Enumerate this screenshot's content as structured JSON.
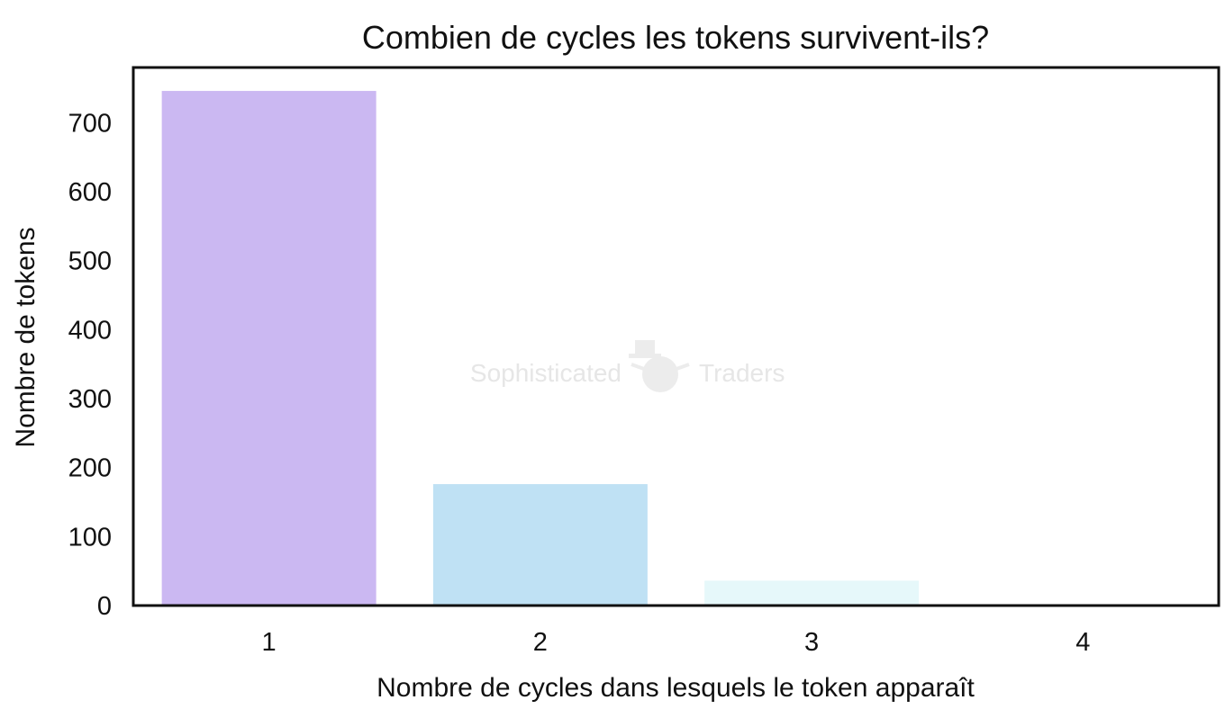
{
  "chart_data": {
    "type": "bar",
    "title": "Combien de cycles les tokens survivent-ils?",
    "xlabel": "Nombre de cycles dans lesquels le token apparaît",
    "ylabel": "Nombre de tokens",
    "categories": [
      "1",
      "2",
      "3",
      "4"
    ],
    "values": [
      746,
      176,
      36,
      1
    ],
    "colors": [
      "#cbb8f2",
      "#bfe1f4",
      "#e6f8fa",
      "#f4fbfd"
    ],
    "ylim": [
      0,
      780
    ],
    "yticks": [
      0,
      100,
      200,
      300,
      400,
      500,
      600,
      700
    ],
    "grid": false,
    "legend": "none"
  },
  "watermark": {
    "left_text": "Sophisticated",
    "right_text": "Traders",
    "icon": "snowman-top-hat-icon"
  }
}
